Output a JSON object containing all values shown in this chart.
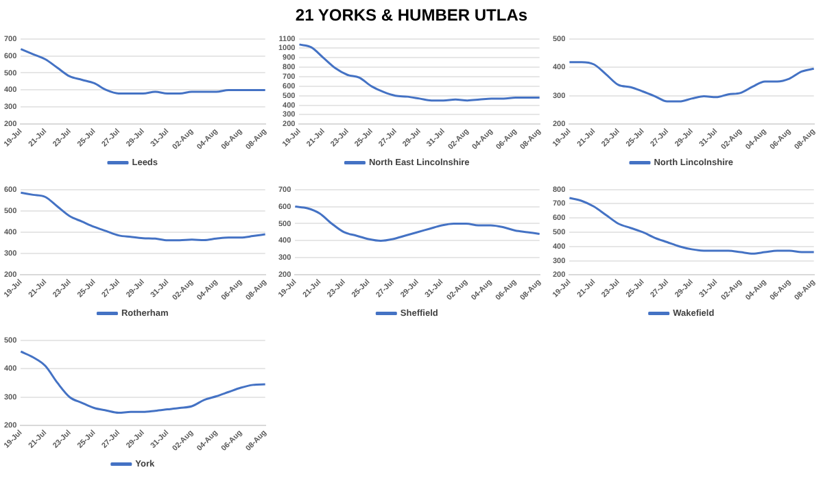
{
  "chart_data": [
    {
      "type": "line",
      "categories": [
        "19-Jul",
        null,
        "21-Jul",
        null,
        "23-Jul",
        null,
        "25-Jul",
        null,
        "27-Jul",
        null,
        "29-Jul",
        null,
        "31-Jul",
        null,
        "02-Aug",
        null,
        "04-Aug",
        null,
        "06-Aug",
        null,
        "08-Aug"
      ],
      "ylim": [
        200,
        700
      ],
      "yticks": [
        200,
        300,
        400,
        500,
        600,
        700
      ],
      "grid": "y",
      "legend": "bottom",
      "series": [
        {
          "name": "Leeds",
          "color": "#4472c4",
          "values": [
            640,
            610,
            580,
            530,
            480,
            460,
            440,
            400,
            380,
            380,
            380,
            390,
            380,
            380,
            390,
            390,
            390,
            400,
            400,
            400,
            400
          ]
        }
      ]
    },
    {
      "type": "line",
      "title": "21 YORKS & HUMBER UTLAs",
      "categories": [
        "19-Jul",
        null,
        "21-Jul",
        null,
        "23-Jul",
        null,
        "25-Jul",
        null,
        "27-Jul",
        null,
        "29-Jul",
        null,
        "31-Jul",
        null,
        "02-Aug",
        null,
        "04-Aug",
        null,
        "06-Aug",
        null,
        "08-Aug"
      ],
      "ylim": [
        200,
        1100
      ],
      "yticks": [
        200,
        300,
        400,
        500,
        600,
        700,
        800,
        900,
        1000,
        1100
      ],
      "grid": "y",
      "legend": "bottom",
      "series": [
        {
          "name": "North East Lincolnshire",
          "color": "#4472c4",
          "values": [
            1040,
            1010,
            900,
            790,
            720,
            690,
            600,
            540,
            500,
            490,
            470,
            450,
            450,
            460,
            450,
            460,
            470,
            470,
            480,
            480,
            480
          ]
        }
      ]
    },
    {
      "type": "line",
      "categories": [
        "19-Jul",
        null,
        "21-Jul",
        null,
        "23-Jul",
        null,
        "25-Jul",
        null,
        "27-Jul",
        null,
        "29-Jul",
        null,
        "31-Jul",
        null,
        "02-Aug",
        null,
        "04-Aug",
        null,
        "06-Aug",
        null,
        "08-Aug"
      ],
      "ylim": [
        200,
        500
      ],
      "yticks": [
        200,
        300,
        400,
        500
      ],
      "grid": "y",
      "legend": "bottom",
      "series": [
        {
          "name": "North Lincolnshire",
          "color": "#4472c4",
          "values": [
            418,
            418,
            410,
            375,
            338,
            330,
            315,
            298,
            280,
            280,
            290,
            298,
            295,
            305,
            310,
            332,
            350,
            350,
            360,
            385,
            395
          ]
        }
      ]
    },
    {
      "type": "line",
      "categories": [
        "19-Jul",
        null,
        "21-Jul",
        null,
        "23-Jul",
        null,
        "25-Jul",
        null,
        "27-Jul",
        null,
        "29-Jul",
        null,
        "31-Jul",
        null,
        "02-Aug",
        null,
        "04-Aug",
        null,
        "06-Aug",
        null,
        "08-Aug"
      ],
      "ylim": [
        200,
        600
      ],
      "yticks": [
        200,
        300,
        400,
        500,
        600
      ],
      "grid": "y",
      "legend": "bottom",
      "series": [
        {
          "name": "Rotherham",
          "color": "#4472c4",
          "values": [
            585,
            575,
            565,
            520,
            475,
            450,
            425,
            405,
            385,
            378,
            372,
            370,
            362,
            362,
            365,
            363,
            370,
            375,
            375,
            382,
            390
          ]
        }
      ]
    },
    {
      "type": "line",
      "categories": [
        "19-Jul",
        null,
        "21-Jul",
        null,
        "23-Jul",
        null,
        "25-Jul",
        null,
        "27-Jul",
        null,
        "29-Jul",
        null,
        "31-Jul",
        null,
        "02-Aug",
        null,
        "04-Aug",
        null,
        "06-Aug",
        null,
        "08-Aug"
      ],
      "ylim": [
        200,
        700
      ],
      "yticks": [
        200,
        300,
        400,
        500,
        600,
        700
      ],
      "grid": "y",
      "legend": "bottom",
      "series": [
        {
          "name": "Sheffield",
          "color": "#4472c4",
          "values": [
            600,
            590,
            560,
            500,
            450,
            430,
            410,
            400,
            410,
            430,
            450,
            470,
            490,
            500,
            500,
            490,
            490,
            480,
            460,
            450,
            440
          ]
        }
      ]
    },
    {
      "type": "line",
      "categories": [
        "19-Jul",
        null,
        "21-Jul",
        null,
        "23-Jul",
        null,
        "25-Jul",
        null,
        "27-Jul",
        null,
        "29-Jul",
        null,
        "31-Jul",
        null,
        "02-Aug",
        null,
        "04-Aug",
        null,
        "06-Aug",
        null,
        "08-Aug"
      ],
      "ylim": [
        200,
        800
      ],
      "yticks": [
        200,
        300,
        400,
        500,
        600,
        700,
        800
      ],
      "grid": "y",
      "legend": "bottom",
      "series": [
        {
          "name": "Wakefield",
          "color": "#4472c4",
          "values": [
            740,
            720,
            680,
            620,
            560,
            530,
            500,
            460,
            430,
            400,
            380,
            370,
            370,
            370,
            360,
            350,
            360,
            370,
            370,
            360,
            360
          ]
        }
      ]
    },
    {
      "type": "line",
      "categories": [
        "19-Jul",
        null,
        "21-Jul",
        null,
        "23-Jul",
        null,
        "25-Jul",
        null,
        "27-Jul",
        null,
        "29-Jul",
        null,
        "31-Jul",
        null,
        "02-Aug",
        null,
        "04-Aug",
        null,
        "06-Aug",
        null,
        "08-Aug"
      ],
      "ylim": [
        200,
        500
      ],
      "yticks": [
        200,
        300,
        400,
        500
      ],
      "grid": "y",
      "legend": "bottom",
      "series": [
        {
          "name": "York",
          "color": "#4472c4",
          "values": [
            460,
            440,
            410,
            350,
            300,
            280,
            262,
            253,
            245,
            248,
            248,
            252,
            257,
            262,
            268,
            290,
            303,
            318,
            333,
            343,
            345
          ]
        }
      ]
    }
  ]
}
